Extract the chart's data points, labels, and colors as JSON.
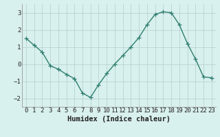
{
  "x": [
    0,
    1,
    2,
    3,
    4,
    5,
    6,
    7,
    8,
    9,
    10,
    11,
    12,
    13,
    14,
    15,
    16,
    17,
    18,
    19,
    20,
    21,
    22,
    23
  ],
  "y": [
    1.5,
    1.1,
    0.7,
    -0.1,
    -0.3,
    -0.6,
    -0.85,
    -1.7,
    -1.95,
    -1.2,
    -0.55,
    0.0,
    0.5,
    1.0,
    1.55,
    2.3,
    2.9,
    3.05,
    3.0,
    2.3,
    1.2,
    0.3,
    -0.75,
    -0.8
  ],
  "line_color": "#2d7d6e",
  "marker": "+",
  "marker_size": 4,
  "bg_color": "#d8f0ee",
  "grid_color": "#b8d4d0",
  "xlabel": "Humidex (Indice chaleur)",
  "xlim": [
    -0.5,
    23.5
  ],
  "ylim": [
    -2.5,
    3.5
  ],
  "yticks": [
    -2,
    -1,
    0,
    1,
    2,
    3
  ],
  "xticks": [
    0,
    1,
    2,
    3,
    4,
    5,
    6,
    7,
    8,
    9,
    10,
    11,
    12,
    13,
    14,
    15,
    16,
    17,
    18,
    19,
    20,
    21,
    22,
    23
  ],
  "tick_fontsize": 6.5,
  "label_fontsize": 7.5,
  "linewidth": 1.0,
  "marker_linewidth": 0.9
}
